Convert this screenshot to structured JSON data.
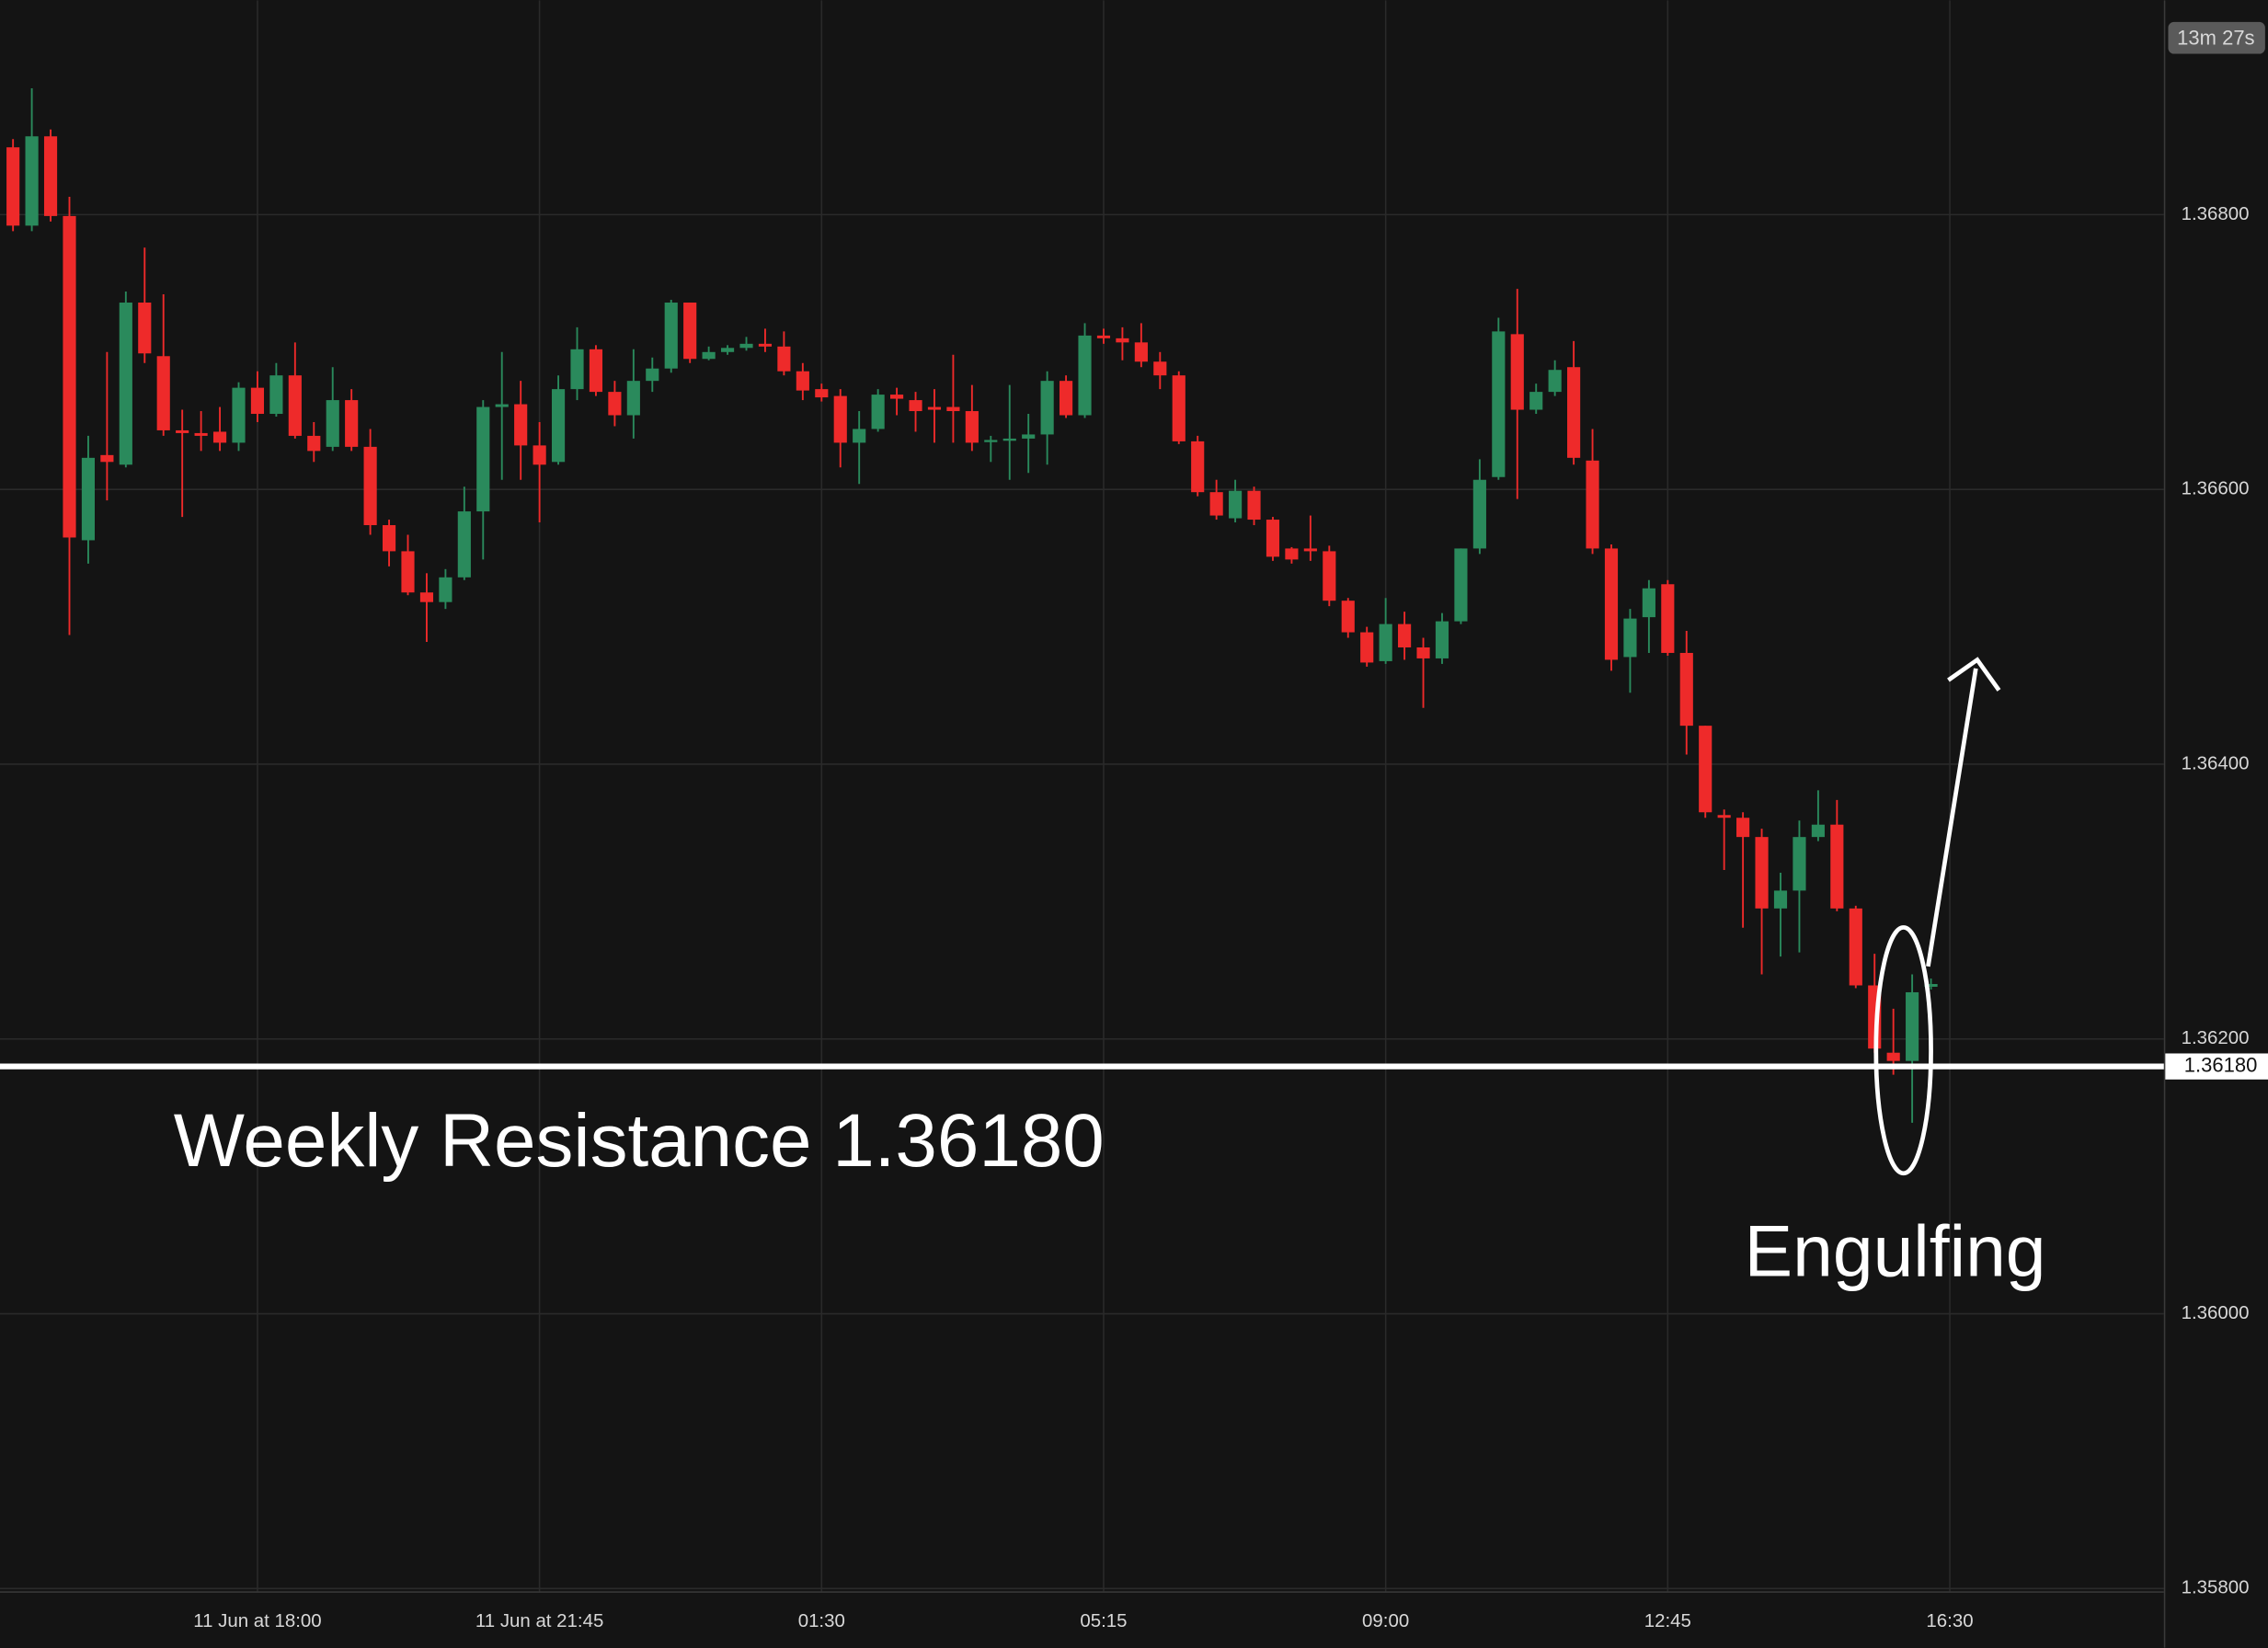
{
  "chart_data": {
    "type": "candlestick",
    "countdown": "13m 27s",
    "annotation": "Engulfing",
    "resistance": {
      "value": 1.3618,
      "label": "1.36180",
      "text": "Weekly Resistance 1.36180"
    },
    "up_color": "#2a8a5c",
    "down_color": "#ee2a2a",
    "grid": true,
    "ylim": [
      1.35798,
      1.36956
    ],
    "yticks": [
      {
        "value": 1.358,
        "label": "1.35800"
      },
      {
        "value": 1.36,
        "label": "1.36000"
      },
      {
        "value": 1.362,
        "label": "1.36200"
      },
      {
        "value": 1.364,
        "label": "1.36400"
      },
      {
        "value": 1.366,
        "label": "1.36600"
      },
      {
        "value": 1.368,
        "label": "1.36800"
      }
    ],
    "categories": [
      null,
      null,
      null,
      null,
      null,
      null,
      null,
      null,
      null,
      null,
      null,
      null,
      null,
      "11 Jun at 18:00",
      null,
      null,
      null,
      null,
      null,
      null,
      null,
      null,
      null,
      null,
      null,
      null,
      null,
      null,
      "11 Jun at 21:45",
      null,
      null,
      null,
      null,
      null,
      null,
      null,
      null,
      null,
      null,
      null,
      null,
      null,
      null,
      "01:30",
      null,
      null,
      null,
      null,
      null,
      null,
      null,
      null,
      null,
      null,
      null,
      null,
      null,
      null,
      "05:15",
      null,
      null,
      null,
      null,
      null,
      null,
      null,
      null,
      null,
      null,
      null,
      null,
      null,
      null,
      "09:00",
      null,
      null,
      null,
      null,
      null,
      null,
      null,
      null,
      null,
      null,
      null,
      null,
      null,
      null,
      "12:45",
      null,
      null,
      null,
      null,
      null,
      null,
      null,
      null,
      null,
      null,
      null,
      null,
      null,
      null,
      "16:30"
    ],
    "open": [
      1.36849,
      1.36792,
      1.36857,
      1.36799,
      1.36563,
      1.36625,
      1.36618,
      1.36736,
      1.36697,
      1.36643,
      1.36641,
      1.36642,
      1.36634,
      1.36674,
      1.36655,
      1.36683,
      1.36639,
      1.36631,
      1.36665,
      1.36631,
      1.36574,
      1.36555,
      1.36525,
      1.36518,
      1.36536,
      1.36584,
      1.3666,
      1.36662,
      1.36632,
      1.3662,
      1.36673,
      1.36702,
      1.36671,
      1.36654,
      1.36679,
      1.36688,
      1.36736,
      1.36695,
      1.367,
      1.36703,
      1.36706,
      1.36704,
      1.36686,
      1.36673,
      1.36668,
      1.36634,
      1.36644,
      1.36669,
      1.36665,
      1.3666,
      1.3666,
      1.36657,
      1.36635,
      1.36636,
      1.36637,
      1.3664,
      1.36679,
      1.36654,
      1.36712,
      1.3671,
      1.36707,
      1.36693,
      1.36683,
      1.36635,
      1.36598,
      1.36579,
      1.36599,
      1.36578,
      1.36557,
      1.36557,
      1.36555,
      1.36519,
      1.36496,
      1.36475,
      1.36502,
      1.36485,
      1.36477,
      1.36504,
      1.36557,
      1.36609,
      1.36713,
      1.36658,
      1.36671,
      1.36689,
      1.36621,
      1.36557,
      1.36478,
      1.36507,
      1.36531,
      1.36481,
      1.36428,
      1.36363,
      1.36361,
      1.36347,
      1.36295,
      1.36308,
      1.36347,
      1.36356,
      1.36295,
      1.36239,
      1.3619,
      1.36184,
      1.36238,
      null
    ],
    "high": [
      1.36855,
      1.36892,
      1.36862,
      1.36813,
      1.36639,
      1.367,
      1.36744,
      1.36776,
      1.36742,
      1.36658,
      1.36657,
      1.3666,
      1.36678,
      1.36686,
      1.36692,
      1.36707,
      1.36649,
      1.36689,
      1.36673,
      1.36644,
      1.36578,
      1.36567,
      1.36539,
      1.36542,
      1.36602,
      1.36665,
      1.367,
      1.36679,
      1.36649,
      1.36683,
      1.36718,
      1.36705,
      1.36679,
      1.36702,
      1.36696,
      1.36738,
      1.36736,
      1.36704,
      1.36705,
      1.36711,
      1.36717,
      1.36715,
      1.36692,
      1.36677,
      1.36673,
      1.36657,
      1.36673,
      1.36674,
      1.36671,
      1.36673,
      1.36698,
      1.36676,
      1.36639,
      1.36676,
      1.36655,
      1.36686,
      1.36683,
      1.36721,
      1.36717,
      1.36718,
      1.36721,
      1.367,
      1.36686,
      1.36639,
      1.36607,
      1.36607,
      1.36602,
      1.3658,
      1.36558,
      1.36581,
      1.36559,
      1.36521,
      1.365,
      1.36521,
      1.36511,
      1.36492,
      1.3651,
      1.36557,
      1.36622,
      1.36725,
      1.36746,
      1.36677,
      1.36694,
      1.36708,
      1.36644,
      1.3656,
      1.36513,
      1.36534,
      1.36534,
      1.36497,
      1.36428,
      1.36367,
      1.36365,
      1.36353,
      1.36321,
      1.36359,
      1.36381,
      1.36374,
      1.36297,
      1.36262,
      1.36222,
      1.36247,
      1.36244,
      null
    ],
    "low": [
      1.36788,
      1.36788,
      1.36795,
      1.36494,
      1.36546,
      1.36592,
      1.36616,
      1.36692,
      1.36639,
      1.3658,
      1.36628,
      1.36628,
      1.36628,
      1.36649,
      1.36653,
      1.36637,
      1.3662,
      1.36628,
      1.36628,
      1.36567,
      1.36544,
      1.36523,
      1.36489,
      1.36513,
      1.36534,
      1.36549,
      1.36607,
      1.36607,
      1.36576,
      1.36618,
      1.36665,
      1.36668,
      1.36646,
      1.36637,
      1.36671,
      1.36685,
      1.36692,
      1.36694,
      1.36698,
      1.36701,
      1.367,
      1.36683,
      1.36665,
      1.36664,
      1.36616,
      1.36604,
      1.36642,
      1.36654,
      1.36642,
      1.36634,
      1.36634,
      1.36628,
      1.3662,
      1.36607,
      1.36612,
      1.36618,
      1.36652,
      1.36652,
      1.36706,
      1.36694,
      1.36689,
      1.36673,
      1.36633,
      1.36595,
      1.36578,
      1.36576,
      1.36574,
      1.36548,
      1.36546,
      1.36548,
      1.36515,
      1.36492,
      1.36471,
      1.36473,
      1.36476,
      1.36441,
      1.36473,
      1.36502,
      1.36553,
      1.36607,
      1.36593,
      1.36655,
      1.36668,
      1.36618,
      1.36553,
      1.36468,
      1.36452,
      1.36481,
      1.36479,
      1.36407,
      1.36361,
      1.36323,
      1.36281,
      1.36247,
      1.3626,
      1.36263,
      1.36344,
      1.36293,
      1.36237,
      1.3619,
      1.36174,
      1.36139,
      1.36236,
      null
    ],
    "close": [
      1.36792,
      1.36857,
      1.36799,
      1.36565,
      1.36623,
      1.3662,
      1.36736,
      1.36699,
      1.36643,
      1.36641,
      1.36639,
      1.36634,
      1.36674,
      1.36655,
      1.36683,
      1.36639,
      1.36628,
      1.36665,
      1.36631,
      1.36574,
      1.36555,
      1.36525,
      1.36518,
      1.36536,
      1.36584,
      1.3666,
      1.36662,
      1.36632,
      1.36618,
      1.36673,
      1.36702,
      1.36671,
      1.36654,
      1.36679,
      1.36688,
      1.36736,
      1.36695,
      1.367,
      1.36703,
      1.36706,
      1.36704,
      1.36686,
      1.36672,
      1.36667,
      1.36634,
      1.36644,
      1.36669,
      1.36666,
      1.36657,
      1.36658,
      1.36657,
      1.36634,
      1.36636,
      1.36637,
      1.3664,
      1.36679,
      1.36654,
      1.36712,
      1.3671,
      1.36707,
      1.36693,
      1.36683,
      1.36635,
      1.36598,
      1.36581,
      1.36599,
      1.36578,
      1.36551,
      1.36549,
      1.36555,
      1.36519,
      1.36496,
      1.36474,
      1.36502,
      1.36485,
      1.36477,
      1.36504,
      1.36557,
      1.36607,
      1.36715,
      1.36658,
      1.36671,
      1.36687,
      1.36623,
      1.36557,
      1.36476,
      1.36506,
      1.36528,
      1.36481,
      1.36428,
      1.36365,
      1.36361,
      1.36347,
      1.36295,
      1.36308,
      1.36347,
      1.36356,
      1.36295,
      1.36239,
      1.36193,
      1.36184,
      1.36234,
      1.3624,
      null
    ]
  }
}
